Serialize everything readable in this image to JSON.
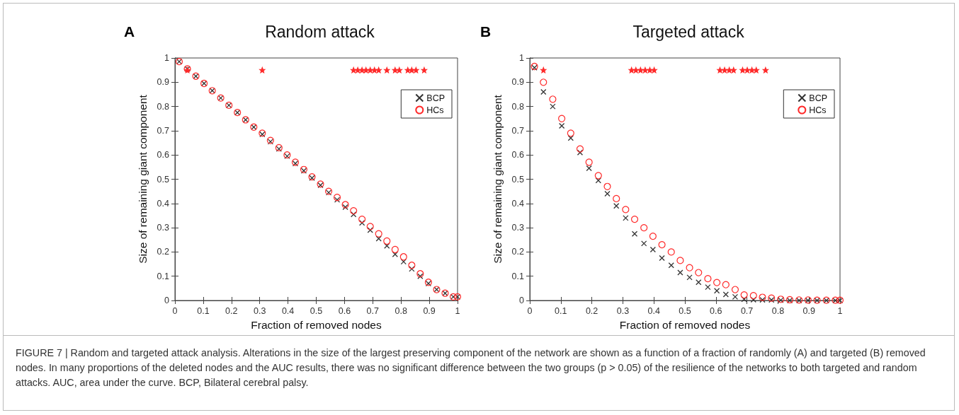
{
  "chart_data": [
    {
      "type": "scatter",
      "title": "Random attack",
      "xlabel": "Fraction of removed nodes",
      "ylabel": "Size of remaining giant component",
      "annotations": [
        "A",
        "FIGURE 7 | Random and targeted attack analysis. Alterations in the size of the largest preserving component of the network are shown as a function of a fraction of randomly (A) and targeted (B) removed nodes. In many proportions of the deleted nodes and the AUC results, there was no significant difference between the two groups (p > 0.05) of the resilience of the networks to both targeted and random attacks. AUC, area under the curve. BCP, Bilateral cerebral palsy."
      ],
      "x": [
        0.015,
        0.044,
        0.074,
        0.103,
        0.132,
        0.162,
        0.191,
        0.221,
        0.25,
        0.279,
        0.309,
        0.338,
        0.368,
        0.397,
        0.426,
        0.456,
        0.485,
        0.515,
        0.544,
        0.574,
        0.603,
        0.632,
        0.662,
        0.691,
        0.721,
        0.75,
        0.779,
        0.809,
        0.838,
        0.868,
        0.897,
        0.926,
        0.956,
        0.985,
        1.0
      ],
      "series": [
        {
          "name": "BCP",
          "color": "#333333",
          "marker": "cross",
          "values": [
            0.985,
            0.955,
            0.925,
            0.895,
            0.865,
            0.835,
            0.805,
            0.775,
            0.745,
            0.715,
            0.685,
            0.655,
            0.625,
            0.595,
            0.565,
            0.535,
            0.505,
            0.475,
            0.445,
            0.415,
            0.385,
            0.355,
            0.32,
            0.29,
            0.255,
            0.225,
            0.19,
            0.16,
            0.13,
            0.1,
            0.07,
            0.045,
            0.03,
            0.015,
            0.015
          ]
        },
        {
          "name": "HCs",
          "color": "#ff2a2a",
          "marker": "circle",
          "values": [
            0.985,
            0.955,
            0.925,
            0.895,
            0.865,
            0.835,
            0.805,
            0.775,
            0.745,
            0.715,
            0.69,
            0.66,
            0.63,
            0.6,
            0.57,
            0.54,
            0.51,
            0.48,
            0.45,
            0.425,
            0.395,
            0.37,
            0.335,
            0.305,
            0.275,
            0.245,
            0.21,
            0.18,
            0.145,
            0.11,
            0.075,
            0.045,
            0.03,
            0.015,
            0.015
          ]
        },
        {
          "color": "#ff2a2a",
          "marker": "star",
          "x": [
            0.044,
            0.309,
            0.632,
            0.647,
            0.662,
            0.676,
            0.691,
            0.706,
            0.721,
            0.75,
            0.779,
            0.794,
            0.824,
            0.838,
            0.853,
            0.882
          ],
          "values": [
            0.95,
            0.95,
            0.95,
            0.95,
            0.95,
            0.95,
            0.95,
            0.95,
            0.95,
            0.95,
            0.95,
            0.95,
            0.95,
            0.95,
            0.95,
            0.95
          ]
        }
      ],
      "xlim": [
        0,
        1
      ],
      "xticks": [
        0,
        0.1,
        0.2,
        0.3,
        0.4,
        0.5,
        0.6,
        0.7,
        0.8,
        0.9,
        1
      ],
      "ylim": [
        0,
        1
      ],
      "yticks": [
        0,
        0.1,
        0.2,
        0.3,
        0.4,
        0.5,
        0.6,
        0.7,
        0.8,
        0.9,
        1
      ],
      "legend": "top right"
    },
    {
      "type": "scatter",
      "title": "Targeted attack",
      "xlabel": "Fraction of removed nodes",
      "ylabel": "Size of remaining giant component",
      "annotations": [
        "B"
      ],
      "x": [
        0.015,
        0.044,
        0.074,
        0.103,
        0.132,
        0.162,
        0.191,
        0.221,
        0.25,
        0.279,
        0.309,
        0.338,
        0.368,
        0.397,
        0.426,
        0.456,
        0.485,
        0.515,
        0.544,
        0.574,
        0.603,
        0.632,
        0.662,
        0.691,
        0.721,
        0.75,
        0.779,
        0.809,
        0.838,
        0.868,
        0.897,
        0.926,
        0.956,
        0.985,
        1.0
      ],
      "series": [
        {
          "name": "BCP",
          "color": "#333333",
          "marker": "cross",
          "values": [
            0.96,
            0.86,
            0.8,
            0.72,
            0.67,
            0.61,
            0.545,
            0.495,
            0.44,
            0.39,
            0.34,
            0.275,
            0.235,
            0.21,
            0.175,
            0.145,
            0.115,
            0.095,
            0.075,
            0.055,
            0.04,
            0.025,
            0.015,
            0.005,
            0.003,
            0.002,
            0.002,
            0.001,
            0,
            0,
            0,
            0,
            0,
            0,
            0
          ]
        },
        {
          "name": "HCs",
          "color": "#ff2a2a",
          "marker": "circle",
          "values": [
            0.965,
            0.9,
            0.83,
            0.75,
            0.69,
            0.625,
            0.57,
            0.515,
            0.47,
            0.42,
            0.375,
            0.335,
            0.3,
            0.265,
            0.23,
            0.2,
            0.165,
            0.135,
            0.115,
            0.09,
            0.074,
            0.065,
            0.045,
            0.023,
            0.02,
            0.013,
            0.01,
            0.005,
            0.003,
            0.002,
            0.002,
            0.001,
            0.001,
            0.001,
            0.001
          ]
        },
        {
          "color": "#ff2a2a",
          "marker": "star",
          "x": [
            0.044,
            0.328,
            0.342,
            0.357,
            0.372,
            0.387,
            0.401,
            0.613,
            0.628,
            0.643,
            0.657,
            0.686,
            0.701,
            0.716,
            0.73,
            0.76
          ],
          "values": [
            0.95,
            0.95,
            0.95,
            0.95,
            0.95,
            0.95,
            0.95,
            0.95,
            0.95,
            0.95,
            0.95,
            0.95,
            0.95,
            0.95,
            0.95,
            0.95
          ]
        }
      ],
      "xlim": [
        0,
        1
      ],
      "xticks": [
        0,
        0.1,
        0.2,
        0.3,
        0.4,
        0.5,
        0.6,
        0.7,
        0.8,
        0.9,
        1
      ],
      "ylim": [
        0,
        1
      ],
      "yticks": [
        0,
        0.1,
        0.2,
        0.3,
        0.4,
        0.5,
        0.6,
        0.7,
        0.8,
        0.9,
        1
      ],
      "legend": "top right"
    }
  ]
}
